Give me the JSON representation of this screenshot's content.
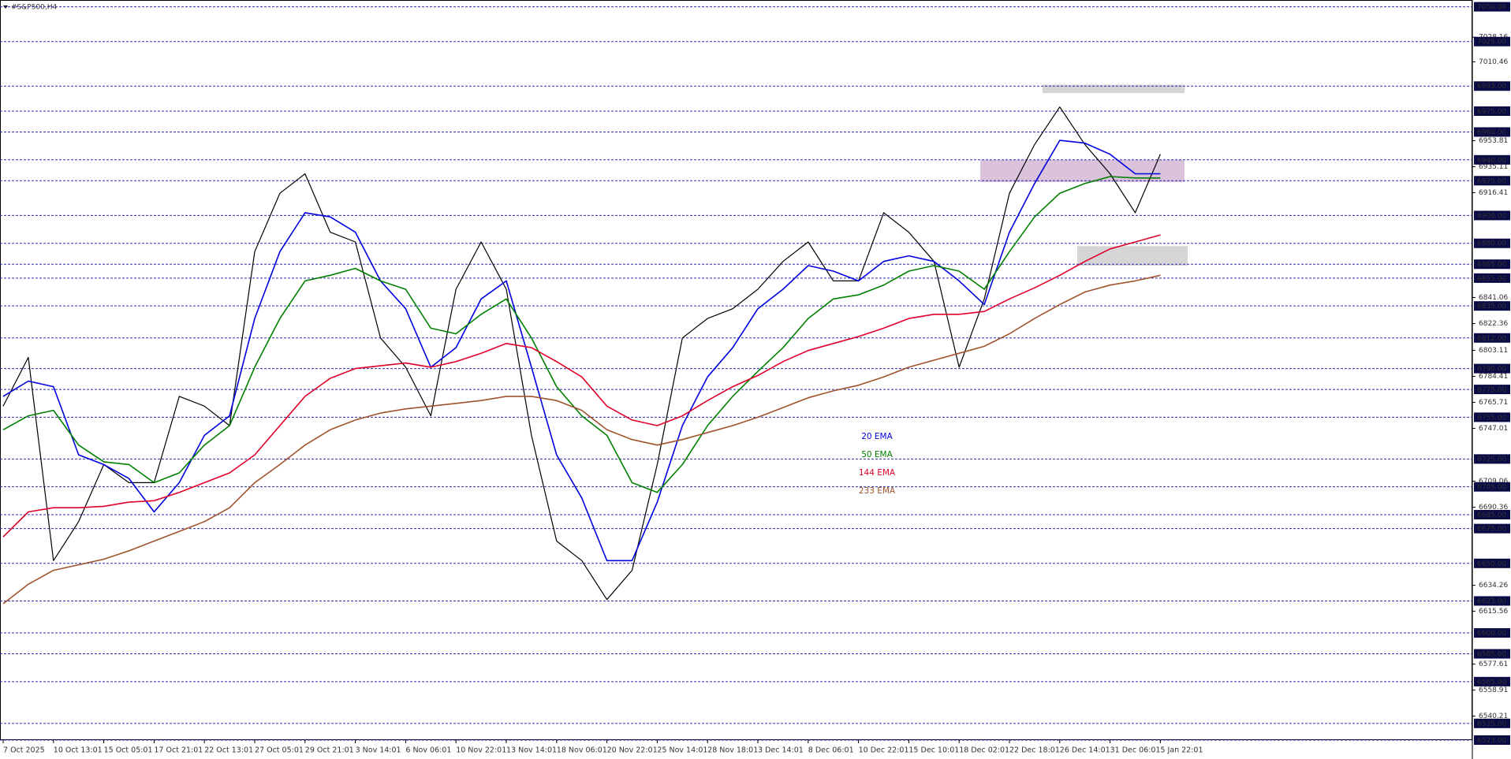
{
  "chart_data": {
    "type": "line",
    "title": "#S&P500,H4",
    "categories": [
      "7 Oct 2025",
      null,
      "10 Oct 13:01",
      null,
      "15 Oct 05:01",
      null,
      "17 Oct 21:01",
      null,
      "22 Oct 13:01",
      null,
      "27 Oct 05:01",
      null,
      "29 Oct 21:01",
      null,
      "3 Nov 14:01",
      null,
      "6 Nov 06:01",
      null,
      "10 Nov 22:01",
      null,
      "13 Nov 14:01",
      null,
      "18 Nov 06:01",
      null,
      "20 Nov 22:01",
      null,
      "25 Nov 14:01",
      null,
      "28 Nov 18:01",
      null,
      "3 Dec 14:01",
      null,
      "8 Dec 06:01",
      null,
      "10 Dec 22:01",
      null,
      "15 Dec 10:01",
      null,
      "18 Dec 02:01",
      null,
      "22 Dec 18:01",
      null,
      "26 Dec 14:01",
      null,
      "31 Dec 06:01",
      null,
      "5 Jan 22:01"
    ],
    "series": [
      {
        "color": "#000000",
        "values": [
          6763,
          6798,
          6652,
          6680,
          6721,
          6708,
          6708,
          6770,
          6763,
          6749,
          6874,
          6916,
          6930,
          6888,
          6881,
          6812,
          6791,
          6756,
          6847,
          6881,
          6847,
          6742,
          6666,
          6652,
          6624,
          6645,
          6721,
          6812,
          6826,
          6833,
          6847,
          6867,
          6881,
          6853,
          6853,
          6902,
          6888,
          6867,
          6791,
          6840,
          6916,
          6951,
          6978,
          6951,
          6930,
          6902,
          6944
        ]
      },
      {
        "name": "20 EMA",
        "color": "#0000e0",
        "values": [
          6770,
          6781,
          6777,
          6728,
          6721,
          6711,
          6687,
          6708,
          6742,
          6756,
          6826,
          6874,
          6902,
          6899,
          6888,
          6853,
          6833,
          6791,
          6805,
          6840,
          6853,
          6791,
          6728,
          6697,
          6652,
          6652,
          6694,
          6749,
          6784,
          6805,
          6833,
          6847,
          6864,
          6860,
          6853,
          6867,
          6871,
          6867,
          6853,
          6836,
          6888,
          6923,
          6954,
          6952,
          6944,
          6930,
          6930
        ]
      },
      {
        "name": "50 EMA",
        "color": "#008000",
        "values": [
          6746,
          6756,
          6760,
          6735,
          6723,
          6721,
          6708,
          6715,
          6735,
          6749,
          6791,
          6826,
          6853,
          6857,
          6862,
          6853,
          6847,
          6819,
          6815,
          6829,
          6840,
          6812,
          6777,
          6756,
          6742,
          6708,
          6701,
          6721,
          6749,
          6770,
          6788,
          6805,
          6826,
          6840,
          6843,
          6850,
          6860,
          6864,
          6860,
          6847,
          6874,
          6899,
          6916,
          6923,
          6928,
          6927,
          6927
        ]
      },
      {
        "name": "144 EMA",
        "color": "#e0002a",
        "values": [
          6669,
          6687,
          6690,
          6690,
          6691,
          6694,
          6695,
          6701,
          6708,
          6715,
          6728,
          6749,
          6770,
          6783,
          6790,
          6792,
          6794,
          6791,
          6795,
          6801,
          6808,
          6805,
          6795,
          6784,
          6763,
          6753,
          6749,
          6756,
          6767,
          6777,
          6785,
          6795,
          6803,
          6808,
          6813,
          6819,
          6826,
          6829,
          6829,
          6831,
          6840,
          6848,
          6857,
          6867,
          6876,
          6881,
          6886
        ]
      },
      {
        "name": "233 EMA",
        "color": "#a0522d",
        "values": [
          6621,
          6635,
          6645,
          6649,
          6653,
          6659,
          6666,
          6673,
          6680,
          6690,
          6708,
          6721,
          6735,
          6746,
          6753,
          6758,
          6761,
          6763,
          6765,
          6767,
          6770,
          6770,
          6767,
          6760,
          6746,
          6739,
          6735,
          6739,
          6744,
          6749,
          6755,
          6762,
          6769,
          6774,
          6778,
          6784,
          6791,
          6796,
          6801,
          6806,
          6815,
          6826,
          6836,
          6845,
          6850,
          6853,
          6857
        ]
      }
    ],
    "ylim": [
      6523,
      7050
    ],
    "yticks": [
      7028.16,
      7010.46,
      6953.81,
      6935.11,
      6916.41,
      6841.06,
      6822.36,
      6803.11,
      6784.41,
      6765.71,
      6747.01,
      6709.06,
      6690.36,
      6634.26,
      6615.56,
      6577.61,
      6558.91,
      6540.21
    ],
    "levels": [
      {
        "value": 7050,
        "label": "7050.00"
      },
      {
        "value": 7025,
        "label": "7025.00"
      },
      {
        "value": 6993,
        "label": "6993.00"
      },
      {
        "value": 6975,
        "label": "6975.00"
      },
      {
        "value": 6960,
        "label": "6960.00"
      },
      {
        "value": 6940,
        "label": "6940.00"
      },
      {
        "value": 6925,
        "label": "6925.00"
      },
      {
        "value": 6900,
        "label": "6900.00"
      },
      {
        "value": 6880,
        "label": "6880.00"
      },
      {
        "value": 6865,
        "label": "6865.00"
      },
      {
        "value": 6855,
        "label": "6855.00"
      },
      {
        "value": 6835,
        "label": "6835.00"
      },
      {
        "value": 6812,
        "label": "6812.00"
      },
      {
        "value": 6790,
        "label": "6790.00"
      },
      {
        "value": 6775,
        "label": "6775.00"
      },
      {
        "value": 6755,
        "label": "6755.00"
      },
      {
        "value": 6725,
        "label": "6725.00"
      },
      {
        "value": 6705,
        "label": "6705.00"
      },
      {
        "value": 6685,
        "label": "6685.00"
      },
      {
        "value": 6675,
        "label": "6675.00"
      },
      {
        "value": 6650,
        "label": "6650.00"
      },
      {
        "value": 6623,
        "label": "6623.00"
      },
      {
        "value": 6600,
        "label": "6600.00"
      },
      {
        "value": 6585,
        "label": "6585.00"
      },
      {
        "value": 6565,
        "label": "6565.00"
      },
      {
        "value": 6535,
        "label": "6535.00"
      },
      {
        "value": 6523,
        "label": "6523.00"
      }
    ],
    "zones": [
      {
        "ylim": [
          6988,
          6994
        ],
        "color": "#d0d0d0"
      },
      {
        "ylim": [
          6924,
          6940
        ],
        "color": "#d8bcd8"
      },
      {
        "ylim": [
          6864,
          6878
        ],
        "color": "#d0d0d0"
      }
    ]
  }
}
